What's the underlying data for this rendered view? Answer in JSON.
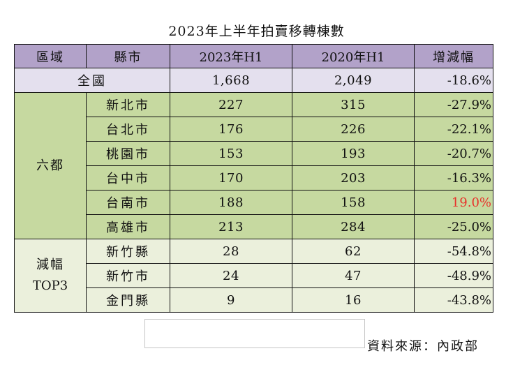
{
  "title": "2023年上半年拍賣移轉棟數",
  "table": {
    "headers": [
      "區域",
      "縣市",
      "2023年H1",
      "2020年H1",
      "增減幅"
    ],
    "national": {
      "label": "全國",
      "h1_2023": "1,668",
      "h1_2020": "2,049",
      "change": "-18.6%"
    },
    "groups": [
      {
        "label": "六都",
        "rows": [
          {
            "city": "新北市",
            "h1_2023": "227",
            "h1_2020": "315",
            "change": "-27.9%"
          },
          {
            "city": "台北市",
            "h1_2023": "176",
            "h1_2020": "226",
            "change": "-22.1%"
          },
          {
            "city": "桃園市",
            "h1_2023": "153",
            "h1_2020": "193",
            "change": "-20.7%"
          },
          {
            "city": "台中市",
            "h1_2023": "170",
            "h1_2020": "203",
            "change": "-16.3%"
          },
          {
            "city": "台南市",
            "h1_2023": "188",
            "h1_2020": "158",
            "change": "19.0%"
          },
          {
            "city": "高雄市",
            "h1_2023": "213",
            "h1_2020": "284",
            "change": "-25.0%"
          }
        ]
      },
      {
        "label_line1": "減幅",
        "label_line2": "TOP3",
        "rows": [
          {
            "city": "新竹縣",
            "h1_2023": "28",
            "h1_2020": "62",
            "change": "-54.8%"
          },
          {
            "city": "新竹市",
            "h1_2023": "24",
            "h1_2020": "47",
            "change": "-48.9%"
          },
          {
            "city": "金門縣",
            "h1_2023": "9",
            "h1_2020": "16",
            "change": "-43.8%"
          }
        ]
      }
    ]
  },
  "source": "資料來源：內政部",
  "colors": {
    "header_bg": "#b2a2c9",
    "national_bg": "#e4e0ee",
    "six_bg": "#c6d9a0",
    "top3_bg": "#ebf0dc",
    "positive_change": "#e8312a"
  }
}
